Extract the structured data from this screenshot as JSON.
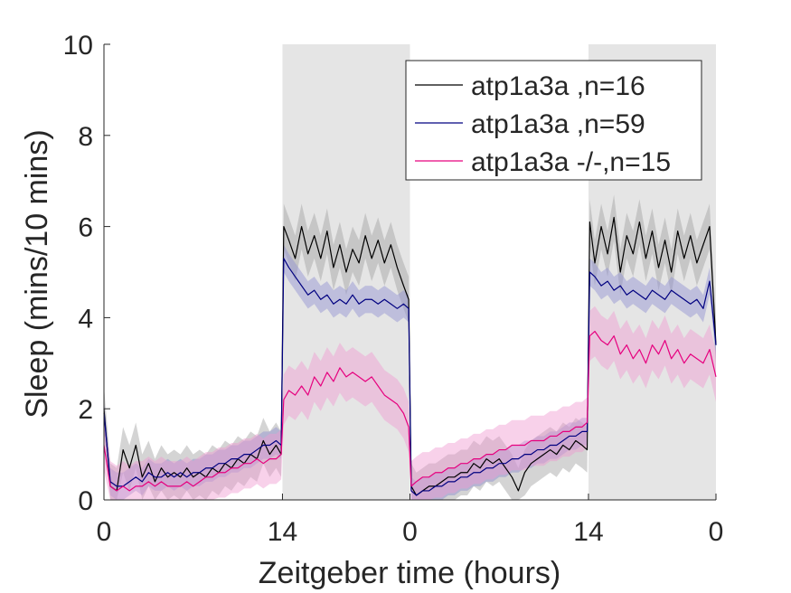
{
  "chart_data": {
    "type": "line",
    "title": "",
    "xlabel": "Zeitgeber time (hours)",
    "ylabel": "Sleep (mins/10 mins)",
    "ylim": [
      0,
      10
    ],
    "xlim": [
      0,
      48
    ],
    "yticks": [
      0,
      2,
      4,
      6,
      8,
      10
    ],
    "ytick_labels": [
      "0",
      "2",
      "4",
      "6",
      "8",
      "10"
    ],
    "xticks": [
      0,
      14,
      24,
      38,
      48
    ],
    "xtick_labels": [
      "0",
      "14",
      "0",
      "14",
      "0"
    ],
    "night_periods": [
      [
        14,
        24
      ],
      [
        38,
        48
      ]
    ],
    "grid": false,
    "legend_position": "top-right",
    "x": [
      0,
      0.5,
      1,
      1.5,
      2,
      2.5,
      3,
      3.5,
      4,
      4.5,
      5,
      5.5,
      6,
      6.5,
      7,
      7.5,
      8,
      8.5,
      9,
      9.5,
      10,
      10.5,
      11,
      11.5,
      12,
      12.5,
      13,
      13.5,
      13.9,
      14.1,
      14.5,
      15,
      15.5,
      16,
      16.5,
      17,
      17.5,
      18,
      18.5,
      19,
      19.5,
      20,
      20.5,
      21,
      21.5,
      22,
      22.5,
      23,
      23.5,
      23.9,
      24.1,
      24.5,
      25,
      25.5,
      26,
      26.5,
      27,
      27.5,
      28,
      28.5,
      29,
      29.5,
      30,
      30.5,
      31,
      31.5,
      32,
      32.5,
      33,
      33.5,
      34,
      34.5,
      35,
      35.5,
      36,
      36.5,
      37,
      37.5,
      37.9,
      38.1,
      38.5,
      39,
      39.5,
      40,
      40.5,
      41,
      41.5,
      42,
      42.5,
      43,
      43.5,
      44,
      44.5,
      45,
      45.5,
      46,
      46.5,
      47,
      47.5,
      48
    ],
    "series": [
      {
        "name": "atp1a3a ,n=16",
        "color": "#000000",
        "values": [
          2.0,
          0.3,
          0.2,
          1.1,
          0.7,
          1.2,
          0.5,
          0.8,
          0.4,
          0.7,
          0.5,
          0.6,
          0.5,
          0.7,
          0.5,
          0.6,
          0.5,
          0.7,
          0.6,
          0.8,
          0.7,
          0.9,
          0.8,
          1.0,
          0.9,
          1.3,
          1.0,
          1.2,
          1.0,
          6.0,
          5.7,
          5.3,
          6.0,
          5.4,
          5.8,
          5.3,
          5.9,
          5.1,
          5.6,
          5.0,
          5.5,
          5.2,
          5.8,
          5.3,
          5.7,
          5.2,
          5.6,
          5.1,
          4.7,
          4.4,
          0.3,
          0.1,
          0.2,
          0.3,
          0.3,
          0.4,
          0.5,
          0.5,
          0.6,
          0.6,
          0.8,
          0.7,
          0.9,
          0.8,
          0.9,
          0.7,
          0.5,
          0.2,
          0.6,
          0.8,
          0.9,
          1.0,
          1.1,
          1.0,
          1.2,
          1.1,
          1.3,
          1.2,
          1.1,
          6.1,
          5.2,
          6.0,
          5.4,
          6.2,
          5.0,
          5.8,
          5.4,
          6.1,
          5.3,
          5.9,
          5.1,
          5.7,
          5.0,
          5.9,
          5.3,
          5.8,
          5.2,
          5.6,
          6.0,
          3.4
        ],
        "band": 0.5
      },
      {
        "name": "atp1a3a ,n=59",
        "color": "#000080",
        "values": [
          1.9,
          0.4,
          0.3,
          0.3,
          0.4,
          0.5,
          0.4,
          0.6,
          0.5,
          0.5,
          0.6,
          0.5,
          0.6,
          0.5,
          0.6,
          0.6,
          0.7,
          0.7,
          0.8,
          0.8,
          0.9,
          0.9,
          1.0,
          1.0,
          1.1,
          1.2,
          1.2,
          1.3,
          1.2,
          5.3,
          5.1,
          4.9,
          4.7,
          4.5,
          4.6,
          4.4,
          4.5,
          4.3,
          4.4,
          4.3,
          4.5,
          4.3,
          4.4,
          4.4,
          4.3,
          4.4,
          4.3,
          4.2,
          4.3,
          4.2,
          0.2,
          0.1,
          0.2,
          0.2,
          0.3,
          0.3,
          0.4,
          0.4,
          0.5,
          0.5,
          0.6,
          0.6,
          0.7,
          0.7,
          0.8,
          0.8,
          0.9,
          0.9,
          1.0,
          1.0,
          1.1,
          1.1,
          1.2,
          1.2,
          1.3,
          1.4,
          1.4,
          1.5,
          1.5,
          5.0,
          4.9,
          4.7,
          4.8,
          4.6,
          4.7,
          4.5,
          4.6,
          4.5,
          4.4,
          4.6,
          4.5,
          4.4,
          4.6,
          4.5,
          4.4,
          4.3,
          4.4,
          4.2,
          4.8,
          3.4
        ],
        "band": 0.3
      },
      {
        "name": "atp1a3a -/-,n=15",
        "color": "#e6007e",
        "values": [
          1.2,
          0.3,
          0.2,
          0.3,
          0.2,
          0.3,
          0.3,
          0.4,
          0.3,
          0.4,
          0.3,
          0.3,
          0.3,
          0.4,
          0.3,
          0.4,
          0.5,
          0.5,
          0.6,
          0.6,
          0.7,
          0.7,
          0.8,
          0.8,
          0.9,
          0.8,
          0.9,
          0.9,
          1.0,
          2.2,
          2.4,
          2.3,
          2.5,
          2.3,
          2.7,
          2.5,
          2.8,
          2.6,
          2.9,
          2.7,
          2.8,
          2.7,
          2.6,
          2.7,
          2.5,
          2.3,
          2.2,
          2.1,
          1.9,
          1.6,
          0.3,
          0.4,
          0.5,
          0.5,
          0.6,
          0.6,
          0.7,
          0.7,
          0.8,
          0.8,
          0.9,
          0.9,
          1.0,
          1.0,
          1.1,
          1.1,
          1.2,
          1.2,
          1.2,
          1.3,
          1.3,
          1.3,
          1.4,
          1.4,
          1.5,
          1.5,
          1.6,
          1.6,
          1.7,
          3.6,
          3.7,
          3.5,
          3.4,
          3.6,
          3.2,
          3.4,
          3.1,
          3.3,
          3.0,
          3.4,
          3.2,
          3.5,
          3.1,
          3.3,
          3.0,
          3.2,
          3.1,
          3.0,
          3.3,
          2.7
        ],
        "band": 0.55
      }
    ]
  }
}
